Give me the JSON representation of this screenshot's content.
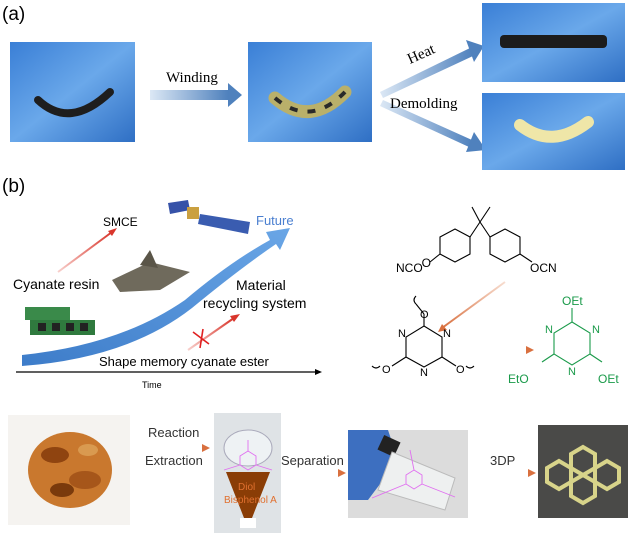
{
  "panel_a": {
    "label": "(a)",
    "step1": "Winding",
    "step2a": "Heat",
    "step2b": "Demolding"
  },
  "panel_b": {
    "label": "(b)",
    "smce": "SMCE",
    "cyanate_resin": "Cyanate resin",
    "future": "Future",
    "material_recycling_1": "Material",
    "material_recycling_2": "recycling system",
    "shape_memory": "Shape memory cyanate ester",
    "time_axis": "Time",
    "chem": {
      "nco": "NCO",
      "ocn": "OCN",
      "n": "N",
      "o": "O",
      "oet": "OEt",
      "eto": "EtO"
    }
  },
  "process": {
    "reaction": "Reaction",
    "extraction": "Extraction",
    "separation": "Separation",
    "printing": "3DP",
    "diol": "Diol",
    "bisphenol": "Bisphenol A"
  },
  "colors": {
    "arrow_blue": "#4f81bd",
    "arrow_red": "#d9352b",
    "arrow_orange": "#d9703f",
    "product_green": "#1a9a4a",
    "overlay_magenta": "#e070f0",
    "future_blue": "#4a7fd0"
  }
}
